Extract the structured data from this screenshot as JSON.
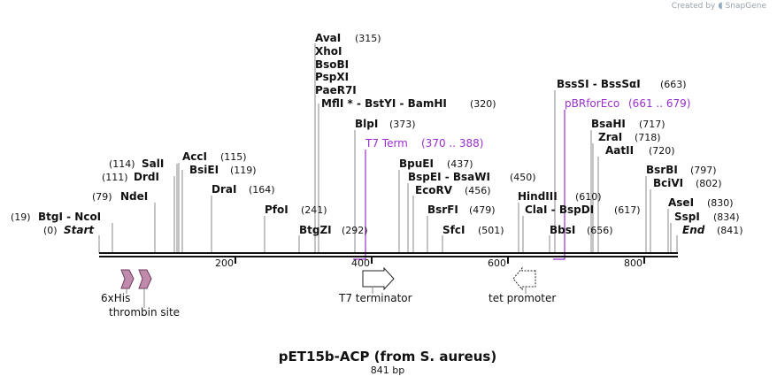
{
  "credit": {
    "text": "Created by",
    "brand": "SnapGene"
  },
  "map": {
    "title": "pET15b-ACP (from S. aureus)",
    "length_label": "841 bp",
    "length": 841,
    "ticks": [
      "200",
      "400",
      "600",
      "800"
    ],
    "colors": {
      "site": "#111111",
      "primer": "#9a2fd0",
      "feature_fill": "#c08aac",
      "line": "#888888"
    }
  },
  "sites": [
    {
      "name": "AvaI",
      "pos": "(315)"
    },
    {
      "name": "XhoI"
    },
    {
      "name": "BsoBI"
    },
    {
      "name": "PspXI"
    },
    {
      "name": "PaeR7I"
    },
    {
      "name": "MflI *",
      "name2": "BstYI",
      "name3": "BamHI",
      "pos": "(320)"
    },
    {
      "name": "BlpI",
      "pos": "(373)"
    },
    {
      "name": "BssSI",
      "name2": "BssSαI",
      "pos": "(663)"
    },
    {
      "name": "BsaHI",
      "pos": "(717)"
    },
    {
      "name": "ZraI",
      "pos": "(718)"
    },
    {
      "name": "AatII",
      "pos": "(720)"
    },
    {
      "name": "BpuEI",
      "pos": "(437)"
    },
    {
      "name": "BspEI",
      "name2": "BsaWI",
      "pos": "(450)"
    },
    {
      "name": "EcoRV",
      "pos": "(456)"
    },
    {
      "name": "BsrFI",
      "pos": "(479)"
    },
    {
      "name": "SfcI",
      "pos": "(501)"
    },
    {
      "name": "HindIII",
      "pos": "(610)"
    },
    {
      "name": "ClaI",
      "name2": "BspDI",
      "pos": "(617)"
    },
    {
      "name": "BbsI",
      "pos": "(656)"
    },
    {
      "name": "BsrBI",
      "pos": "(797)"
    },
    {
      "name": "BciVI",
      "pos": "(802)"
    },
    {
      "name": "AseI",
      "pos": "(830)"
    },
    {
      "name": "SspI",
      "pos": "(834)"
    },
    {
      "name": "End",
      "pos": "(841)"
    },
    {
      "name": "SalI",
      "pos": "(114)"
    },
    {
      "name": "DrdI",
      "pos": "(111)"
    },
    {
      "name": "AccI",
      "pos": "(115)"
    },
    {
      "name": "BsiEI",
      "pos": "(119)"
    },
    {
      "name": "NdeI",
      "pos": "(79)"
    },
    {
      "name": "DraI",
      "pos": "(164)"
    },
    {
      "name": "PfoI",
      "pos": "(241)"
    },
    {
      "name": "BtgZI",
      "pos": "(292)"
    },
    {
      "name": "BtgI",
      "name2": "NcoI",
      "pos": "(19)"
    },
    {
      "name": "Start",
      "pos": "(0)"
    }
  ],
  "primers": [
    {
      "name": "T7 Term",
      "range": "(370 .. 388)"
    },
    {
      "name": "pBRforEco",
      "range": "(661 .. 679)"
    }
  ],
  "features": [
    {
      "name": "6xHis"
    },
    {
      "name": "thrombin site"
    },
    {
      "name": "T7 terminator"
    },
    {
      "name": "tet promoter"
    }
  ]
}
